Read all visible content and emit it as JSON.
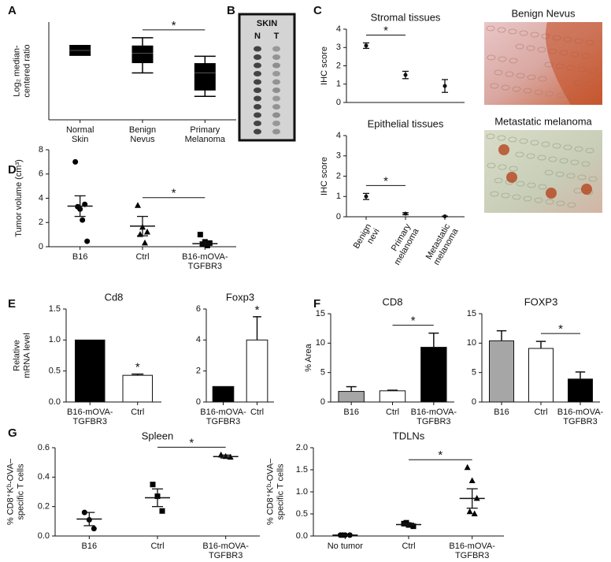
{
  "panel_letters": [
    "A",
    "B",
    "C",
    "D",
    "E",
    "F",
    "G"
  ],
  "blot": {
    "title": "SKIN",
    "lanes": [
      "N",
      "T"
    ]
  },
  "images": [
    {
      "title": "Benign Nevus"
    },
    {
      "title": "Metastatic melanoma"
    }
  ],
  "chart_data": [
    {
      "type": "box",
      "ylabel": "Log₂ median-\ncentered ratio",
      "categories": [
        "Normal\nSkin",
        "Benign\nNevus",
        "Primary\nMelanoma"
      ],
      "boxes": [
        {
          "min": 6.6,
          "q1": 6.6,
          "median": 7.1,
          "q3": 7.6,
          "max": 7.6
        },
        {
          "min": 4.8,
          "q1": 5.8,
          "median": 6.8,
          "q3": 7.6,
          "max": 8.4
        },
        {
          "min": 2.4,
          "q1": 3.0,
          "median": 4.8,
          "q3": 5.8,
          "max": 6.5
        }
      ],
      "ylim": [
        0,
        10
      ],
      "color": "#000000",
      "significance": [
        {
          "label": "*",
          "between": [
            1,
            2
          ]
        }
      ]
    },
    {
      "type": "dot",
      "title": "Stromal tissues",
      "ylabel": "IHC score",
      "categories": [
        null,
        null,
        null
      ],
      "mean_style": "point",
      "groups": [
        {
          "mean": 3.1,
          "error": 0.15
        },
        {
          "mean": 1.5,
          "error": 0.2
        },
        {
          "mean": 0.9,
          "error": 0.35
        }
      ],
      "ylim": [
        0,
        4
      ],
      "yticks": [
        0,
        1,
        2,
        3,
        4
      ],
      "significance": [
        {
          "label": "*",
          "between": [
            0,
            1
          ]
        }
      ]
    },
    {
      "type": "dot",
      "title": "Epithelial tissues",
      "ylabel": "IHC score",
      "categories": [
        "Benign\nnevi",
        "Primary\nmelanoma",
        "Metastatic\nmelanoma"
      ],
      "mean_style": "point",
      "groups": [
        {
          "mean": 1.0,
          "error": 0.15
        },
        {
          "mean": 0.15,
          "error": 0.05
        },
        {
          "mean": 0.02,
          "error": 0.01
        }
      ],
      "ylim": [
        0,
        4
      ],
      "yticks": [
        0,
        1,
        2,
        3,
        4
      ],
      "significance": [
        {
          "label": "*",
          "between": [
            0,
            1
          ]
        }
      ]
    },
    {
      "type": "dot",
      "ylabel": "Tumor volume (cm³)",
      "categories": [
        "B16",
        "Ctrl",
        "B16-mOVA-\nTGFBR3"
      ],
      "mean_style": "line",
      "groups": [
        {
          "marker": "circle",
          "points": [
            7.0,
            3.1,
            3.5,
            3.3,
            2.2,
            0.45
          ],
          "mean": 3.35,
          "error": 0.85
        },
        {
          "marker": "triangle",
          "points": [
            3.4,
            1.6,
            1.2,
            1.0,
            0.3
          ],
          "mean": 1.7,
          "error": 0.8
        },
        {
          "marker": "square",
          "points": [
            1.0,
            0.4,
            0.3,
            0.2,
            0.1
          ],
          "mean": 0.25,
          "error": 0.15
        }
      ],
      "ylim": [
        0,
        8
      ],
      "yticks": [
        0,
        2,
        4,
        6,
        8
      ],
      "significance": [
        {
          "label": "*",
          "between": [
            1,
            2
          ]
        }
      ]
    },
    {
      "type": "bar",
      "title": "Cd8",
      "ylabel": "Relative\nmRNA level",
      "categories": [
        "B16-mOVA-\nTGFBR3",
        "Ctrl"
      ],
      "values": [
        1.0,
        0.43
      ],
      "errors": [
        null,
        0.02
      ],
      "colors": [
        "#000000",
        "#ffffff"
      ],
      "ylim": [
        0,
        1.5
      ],
      "yticks": [
        {
          "value": 0,
          "label": "0.0"
        },
        0.5,
        {
          "value": 1,
          "label": "1.0"
        },
        1.5
      ],
      "significance": [
        {
          "label": "*",
          "between": [
            1
          ]
        }
      ]
    },
    {
      "type": "bar",
      "title": "Foxp3",
      "categories": [
        "B16-mOVA-\nTGFBR3",
        "Ctrl"
      ],
      "values": [
        1.0,
        4.0
      ],
      "errors": [
        null,
        1.5
      ],
      "colors": [
        "#000000",
        "#ffffff"
      ],
      "ylim": [
        0,
        6
      ],
      "yticks": [
        0,
        2,
        4,
        6
      ],
      "significance": [
        {
          "label": "*",
          "between": [
            1
          ]
        }
      ]
    },
    {
      "type": "bar",
      "title": "CD8",
      "ylabel": "% Area",
      "categories": [
        "B16",
        "Ctrl",
        "B16-mOVA-\nTGFBR3"
      ],
      "values": [
        1.8,
        1.9,
        9.3
      ],
      "errors": [
        0.8,
        0.1,
        2.4
      ],
      "colors": [
        "#a6a6a6",
        "#ffffff",
        "#000000"
      ],
      "ylim": [
        0,
        15
      ],
      "yticks": [
        0,
        5,
        10,
        15
      ],
      "significance": [
        {
          "label": "*",
          "between": [
            1,
            2
          ]
        }
      ]
    },
    {
      "type": "bar",
      "title": "FOXP3",
      "categories": [
        "B16",
        "Ctrl",
        "B16-mOVA-\nTGFBR3"
      ],
      "values": [
        10.4,
        9.1,
        3.9
      ],
      "errors": [
        1.7,
        1.2,
        1.2
      ],
      "colors": [
        "#a6a6a6",
        "#ffffff",
        "#000000"
      ],
      "ylim": [
        0,
        15
      ],
      "yticks": [
        0,
        5,
        10,
        15
      ],
      "significance": [
        {
          "label": "*",
          "between": [
            1,
            2
          ]
        }
      ]
    },
    {
      "type": "dot",
      "title": "Spleen",
      "ylabel": "% CD8⁺Kᵇ-OVA–\nspecific T cells",
      "categories": [
        "B16",
        "Ctrl",
        "B16-mOVA-\nTGFBR3"
      ],
      "mean_style": "line",
      "groups": [
        {
          "marker": "circle",
          "points": [
            0.16,
            0.11,
            0.05
          ],
          "mean": 0.115,
          "error": 0.045
        },
        {
          "marker": "square",
          "points": [
            0.35,
            0.27,
            0.17
          ],
          "mean": 0.26,
          "error": 0.06
        },
        {
          "marker": "triangle",
          "points": [
            0.55,
            0.54,
            0.535
          ],
          "mean": 0.54,
          "error": 0.01
        }
      ],
      "ylim": [
        0,
        0.6
      ],
      "yticks": [
        {
          "value": 0,
          "label": "0.0"
        },
        0.2,
        0.4,
        0.6
      ],
      "significance": [
        {
          "label": "*",
          "between": [
            1,
            2
          ]
        }
      ]
    },
    {
      "type": "dot",
      "title": "TDLNs",
      "ylabel": "% CD8⁺Kᵇ-OVA–\nspecific T cells",
      "categories": [
        "No tumor",
        "Ctrl",
        "B16-mOVA-\nTGFBR3"
      ],
      "mean_style": "line",
      "groups": [
        {
          "marker": "circle",
          "points": [
            0.02,
            0.02,
            0.02,
            0.02
          ],
          "mean": 0.02,
          "error": 0.005
        },
        {
          "marker": "square",
          "points": [
            0.28,
            0.25,
            0.22,
            0.3
          ],
          "mean": 0.26,
          "error": 0.03
        },
        {
          "marker": "triangle",
          "points": [
            1.55,
            1.25,
            0.85,
            0.55,
            0.5
          ],
          "mean": 0.85,
          "error": 0.22
        }
      ],
      "ylim": [
        0,
        2
      ],
      "yticks": [
        {
          "value": 0,
          "label": "0.0"
        },
        0.5,
        {
          "value": 1,
          "label": "1.0"
        },
        1.5,
        {
          "value": 2,
          "label": "2.0"
        }
      ],
      "significance": [
        {
          "label": "*",
          "between": [
            1,
            2
          ]
        }
      ]
    }
  ]
}
